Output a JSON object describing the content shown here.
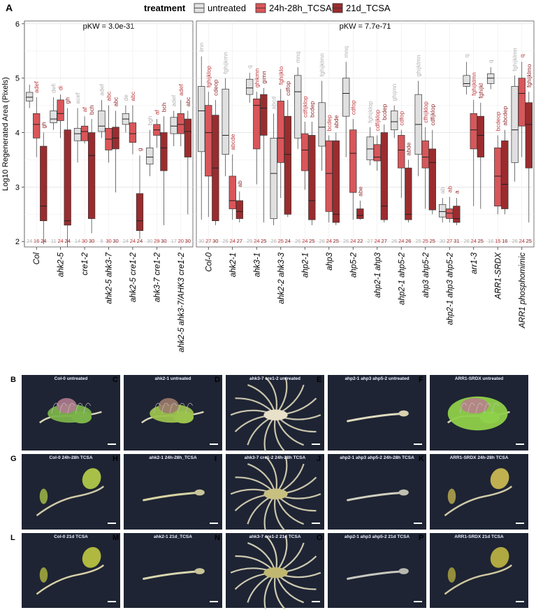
{
  "panel_label": "A",
  "legend": {
    "title": "treatment",
    "items": [
      {
        "label": "untreated",
        "color": "#e0e0e0"
      },
      {
        "label": "24h-28h_TCSA",
        "color": "#d9565a"
      },
      {
        "label": "21d_TCSA",
        "color": "#9b2c2e"
      }
    ]
  },
  "chart_data": {
    "type": "box",
    "ylabel": "Log10 Regenerated Area (Pixels)",
    "ylim": [
      1.9,
      6.05
    ],
    "yticks": [
      2,
      3,
      4,
      5,
      6
    ],
    "grid": true,
    "series_colors": [
      "#e0e0e0",
      "#d9565a",
      "#9b2c2e"
    ],
    "letter_colors": [
      "#b0b0b0",
      "#c0393d",
      "#8e2427"
    ],
    "panels": [
      {
        "pkw": "pKW = 3.0e-31",
        "genotypes": [
          {
            "name": "Col",
            "n": [
              "24",
              "16",
              "24"
            ],
            "letters": [
              "",
              "adef",
              "gh"
            ],
            "boxes": [
              [
                4.45,
                4.58,
                4.65,
                4.74,
                4.88
              ],
              [
                3.55,
                3.9,
                4.15,
                4.35,
                4.65
              ],
              [
                1.95,
                2.38,
                2.65,
                3.75,
                4.0
              ]
            ]
          },
          {
            "name": "ahk2-5",
            "n": [
              "11",
              "24",
              "24"
            ],
            "letters": [
              "defi",
              "di",
              "gh"
            ],
            "boxes": [
              [
                4.05,
                4.18,
                4.25,
                4.4,
                4.65
              ],
              [
                3.9,
                4.22,
                4.35,
                4.6,
                4.7
              ],
              [
                1.9,
                2.3,
                2.38,
                4.05,
                4.45
              ]
            ]
          },
          {
            "name": "cre1-2",
            "n": [
              "14",
              "30",
              "30"
            ],
            "letters": [
              "acef",
              "af",
              "bch"
            ],
            "boxes": [
              [
                3.45,
                3.85,
                3.98,
                4.08,
                4.45
              ],
              [
                3.8,
                3.85,
                4.02,
                4.12,
                4.3
              ],
              [
                2.15,
                2.42,
                3.58,
                4.0,
                4.25
              ]
            ]
          },
          {
            "name": "ahk2-5 ahk3-7",
            "n": [
              "9",
              "30",
              "30"
            ],
            "letters": [
              "adef",
              "abc",
              "abc"
            ],
            "boxes": [
              [
                3.9,
                4.02,
                4.12,
                4.4,
                4.6
              ],
              [
                3.45,
                3.68,
                3.88,
                4.08,
                4.5
              ],
              [
                2.9,
                3.7,
                3.9,
                4.1,
                4.4
              ]
            ]
          },
          {
            "name": "ahk2-5 cre1-2",
            "n": [
              "24",
              "24",
              "24"
            ],
            "letters": [
              "de",
              "abc",
              "g"
            ],
            "boxes": [
              [
                4.0,
                4.15,
                4.25,
                4.35,
                4.5
              ],
              [
                3.6,
                3.82,
                3.98,
                4.18,
                4.5
              ],
              [
                2.05,
                2.2,
                2.38,
                2.88,
                3.58
              ]
            ]
          },
          {
            "name": "ahk3-7 cre1-2",
            "n": [
              "30",
              "29",
              "30"
            ],
            "letters": [
              "bgh",
              "af",
              "bch"
            ],
            "boxes": [
              [
                3.2,
                3.42,
                3.55,
                3.72,
                4.05
              ],
              [
                3.72,
                3.95,
                4.05,
                4.15,
                4.25
              ],
              [
                2.3,
                3.3,
                3.72,
                4.0,
                4.3
              ]
            ]
          },
          {
            "name": "ahk2-5 ahk3-7/AHK3 cre1-2",
            "n": [
              "17",
              "20",
              "30"
            ],
            "letters": [
              "adef",
              "adef",
              "abc"
            ],
            "boxes": [
              [
                3.75,
                3.98,
                4.12,
                4.28,
                4.4
              ],
              [
                3.75,
                3.98,
                4.15,
                4.35,
                4.6
              ],
              [
                2.5,
                3.55,
                4.02,
                4.25,
                4.4
              ]
            ]
          }
        ]
      },
      {
        "pkw": "pKW = 7.7e-71",
        "genotypes": [
          {
            "name": "Col-0",
            "n": [
              "30",
              "27",
              "30"
            ],
            "letters": [
              "imn",
              "fghijklop",
              "cdeop"
            ],
            "boxes": [
              [
                2.4,
                3.65,
                4.4,
                4.85,
                5.4
              ],
              [
                2.45,
                3.2,
                4.0,
                4.5,
                4.75
              ],
              [
                2.3,
                2.38,
                3.35,
                4.32,
                4.6
              ]
            ]
          },
          {
            "name": "ahk2-1",
            "n": [
              "26",
              "24",
              "27"
            ],
            "letters": [
              "fghijkmn",
              "abcde",
              "ab"
            ],
            "boxes": [
              [
                3.2,
                3.6,
                3.95,
                4.8,
                5.0
              ],
              [
                2.4,
                2.6,
                2.75,
                3.2,
                3.6
              ],
              [
                2.35,
                2.42,
                2.55,
                2.75,
                2.92
              ]
            ]
          },
          {
            "name": "ahk3-1",
            "n": [
              "25",
              "24",
              "25"
            ],
            "letters": [
              "q",
              "ghikmn",
              "gimn"
            ],
            "boxes": [
              [
                4.55,
                4.7,
                4.82,
                4.98,
                5.1
              ],
              [
                3.05,
                3.7,
                4.5,
                4.62,
                4.75
              ],
              [
                2.35,
                3.95,
                4.45,
                4.7,
                4.82
              ]
            ]
          },
          {
            "name": "ahk2-2 ahk3-3",
            "n": [
              "26",
              "25",
              "24"
            ],
            "letters": [
              "abcd",
              "fghijklo",
              "cdfop"
            ],
            "boxes": [
              [
                2.3,
                2.42,
                3.25,
                3.9,
                4.35
              ],
              [
                2.8,
                3.45,
                3.9,
                4.58,
                4.8
              ],
              [
                2.45,
                2.5,
                3.6,
                4.3,
                4.6
              ]
            ]
          },
          {
            "name": "ahp2-1",
            "n": [
              "26",
              "24",
              "25"
            ],
            "letters": [
              "mnq",
              "cdfijklop",
              "bcdep"
            ],
            "boxes": [
              [
                3.7,
                3.9,
                4.75,
                5.05,
                5.2
              ],
              [
                2.95,
                3.3,
                3.68,
                3.98,
                4.2
              ],
              [
                2.3,
                2.4,
                2.75,
                3.95,
                4.2
              ]
            ]
          },
          {
            "name": "ahp3",
            "n": [
              "26",
              "24",
              "25"
            ],
            "letters": [
              "fghijklmn",
              "bcdep",
              "abde"
            ],
            "boxes": [
              [
                3.3,
                3.75,
                4.1,
                4.55,
                4.95
              ],
              [
                2.35,
                2.55,
                3.25,
                3.85,
                3.95
              ],
              [
                2.3,
                2.35,
                2.5,
                3.85,
                4.0
              ]
            ]
          },
          {
            "name": "ahp5-2",
            "n": [
              "26",
              "24",
              "22"
            ],
            "letters": [
              "mnq",
              "cdfop",
              "abe"
            ],
            "boxes": [
              [
                3.55,
                4.3,
                4.72,
                5.0,
                5.3
              ],
              [
                2.4,
                2.9,
                3.62,
                4.05,
                4.25
              ],
              [
                2.4,
                2.42,
                2.48,
                2.6,
                2.75
              ]
            ]
          },
          {
            "name": "ahp2-1 ahp3",
            "n": [
              "27",
              "24",
              "27"
            ],
            "letters": [
              "fghijklop",
              "cdfijklop",
              "bcdep"
            ],
            "boxes": [
              [
                3.4,
                3.5,
                3.7,
                3.92,
                4.1
              ],
              [
                3.3,
                3.48,
                3.55,
                3.78,
                3.95
              ],
              [
                2.35,
                2.4,
                2.65,
                4.0,
                4.15
              ]
            ]
          },
          {
            "name": "ahp2-1 ahp5-2",
            "n": [
              "26",
              "24",
              "26"
            ],
            "letters": [
              "ghijmn",
              "cdfop",
              "abde"
            ],
            "boxes": [
              [
                3.9,
                4.05,
                4.2,
                4.4,
                4.5
              ],
              [
                2.8,
                3.35,
                3.68,
                3.95,
                4.05
              ],
              [
                2.35,
                2.4,
                2.5,
                3.35,
                3.5
              ]
            ]
          },
          {
            "name": "ahp3 ahp5-2",
            "n": [
              "25",
              "25",
              "25"
            ],
            "letters": [
              "ghijklmn",
              "cfhijklop",
              "cdfijklop"
            ],
            "boxes": [
              [
                3.2,
                3.6,
                4.15,
                4.7,
                4.95
              ],
              [
                2.6,
                3.35,
                3.55,
                3.85,
                4.1
              ],
              [
                2.5,
                2.58,
                3.45,
                3.7,
                4.05
              ]
            ]
          },
          {
            "name": "ahp2-1 ahp3 ahp5-2",
            "n": [
              "30",
              "27",
              "31"
            ],
            "letters": [
              "ab",
              "ab",
              "a"
            ],
            "boxes": [
              [
                2.35,
                2.45,
                2.55,
                2.68,
                2.8
              ],
              [
                2.35,
                2.42,
                2.52,
                2.6,
                2.82
              ],
              [
                2.3,
                2.35,
                2.42,
                2.65,
                2.8
              ]
            ]
          },
          {
            "name": "arr1-3",
            "n": [
              "26",
              "24",
              "25"
            ],
            "letters": [
              "q",
              "fghijklmn",
              "fghijkl"
            ],
            "boxes": [
              [
                4.7,
                4.85,
                4.9,
                5.05,
                5.3
              ],
              [
                2.65,
                3.7,
                4.05,
                4.35,
                4.6
              ],
              [
                2.6,
                3.55,
                3.95,
                4.3,
                4.55
              ]
            ]
          },
          {
            "name": "ARR1-SRDX",
            "n": [
              "16",
              "15",
              "16"
            ],
            "letters": [
              "q",
              "bcdeop",
              "abcdep"
            ],
            "boxes": [
              [
                4.8,
                4.9,
                5.0,
                5.08,
                5.2
              ],
              [
                2.5,
                2.65,
                3.2,
                3.72,
                3.95
              ],
              [
                2.5,
                2.6,
                3.05,
                3.85,
                4.05
              ]
            ]
          },
          {
            "name": "ARR1 phosphomimic",
            "n": [
              "26",
              "24",
              "25"
            ],
            "letters": [
              "fghijklmn",
              "q",
              "fghijklmo"
            ],
            "boxes": [
              [
                3.1,
                3.45,
                4.05,
                4.85,
                5.05
              ],
              [
                3.55,
                4.12,
                4.72,
                5.0,
                5.3
              ],
              [
                2.35,
                3.35,
                4.15,
                4.55,
                4.75
              ]
            ]
          }
        ]
      }
    ]
  },
  "photos": {
    "row_labels": [
      [
        {
          "letter": "B",
          "label": "Col-0 untreated",
          "type": "callus",
          "green": "#7bb34a",
          "pink": "#b07a8e"
        },
        {
          "letter": "C",
          "label": "ahk2-1 untreated",
          "type": "callus",
          "green": "#9bc24c",
          "pink": "#9b7a6a"
        },
        {
          "letter": "D",
          "label": "ahk3-7 cre1-2 untreated",
          "type": "roots",
          "green": "#dcd6b8",
          "pink": "#e8e0c8"
        },
        {
          "letter": "E",
          "label": "ahp2-1 ahp3 ahp5-2 untreated",
          "type": "stem",
          "green": "#e0dcc0",
          "pink": "#d8d0b0"
        },
        {
          "letter": "F",
          "label": "ARR1-SRDX untreated",
          "type": "callus_big",
          "green": "#8fd04a",
          "pink": "#b8808a"
        }
      ],
      [
        {
          "letter": "G",
          "label": "Col-0 24h-28h TCSA",
          "type": "leafstem",
          "green": "#a8c048",
          "pink": "#cfc9a8"
        },
        {
          "letter": "H",
          "label": "ahk2-1 24h-28h_TCSA",
          "type": "stem",
          "green": "#d6d4a2",
          "pink": "#c8c49a"
        },
        {
          "letter": "I",
          "label": "ahk3-7 cre1-2 24h-28h TCSA",
          "type": "roots",
          "green": "#dcd6b8",
          "pink": "#c8c080"
        },
        {
          "letter": "J",
          "label": "ahp2-1 ahp3 ahp5-2 24h-28h TCSA",
          "type": "stem",
          "green": "#d0d0c0",
          "pink": "#c0c0b0"
        },
        {
          "letter": "K",
          "label": "ARR1-SRDX 24h-28h TCSA",
          "type": "leafstem",
          "green": "#c0b050",
          "pink": "#cfc9a8"
        }
      ],
      [
        {
          "letter": "L",
          "label": "Col-0 21d TCSA",
          "type": "leafstem",
          "green": "#b0b840",
          "pink": "#d8d0a8"
        },
        {
          "letter": "M",
          "label": "ahk2-1 21d_TCSA",
          "type": "stem",
          "green": "#d8d6b0",
          "pink": "#c8c49a"
        },
        {
          "letter": "N",
          "label": "ahk3-7 cre1-2 21d TCSA",
          "type": "roots",
          "green": "#e0dcc0",
          "pink": "#c0b870"
        },
        {
          "letter": "O",
          "label": "ahp2-1 ahp3 ahp5-2 21d TCSA",
          "type": "stem",
          "green": "#c8c8c0",
          "pink": "#b8b8b0"
        },
        {
          "letter": "P",
          "label": "ARR1-SRDX 21d TCSA",
          "type": "leafstem",
          "green": "#b0a840",
          "pink": "#d0c8a0"
        }
      ]
    ]
  }
}
